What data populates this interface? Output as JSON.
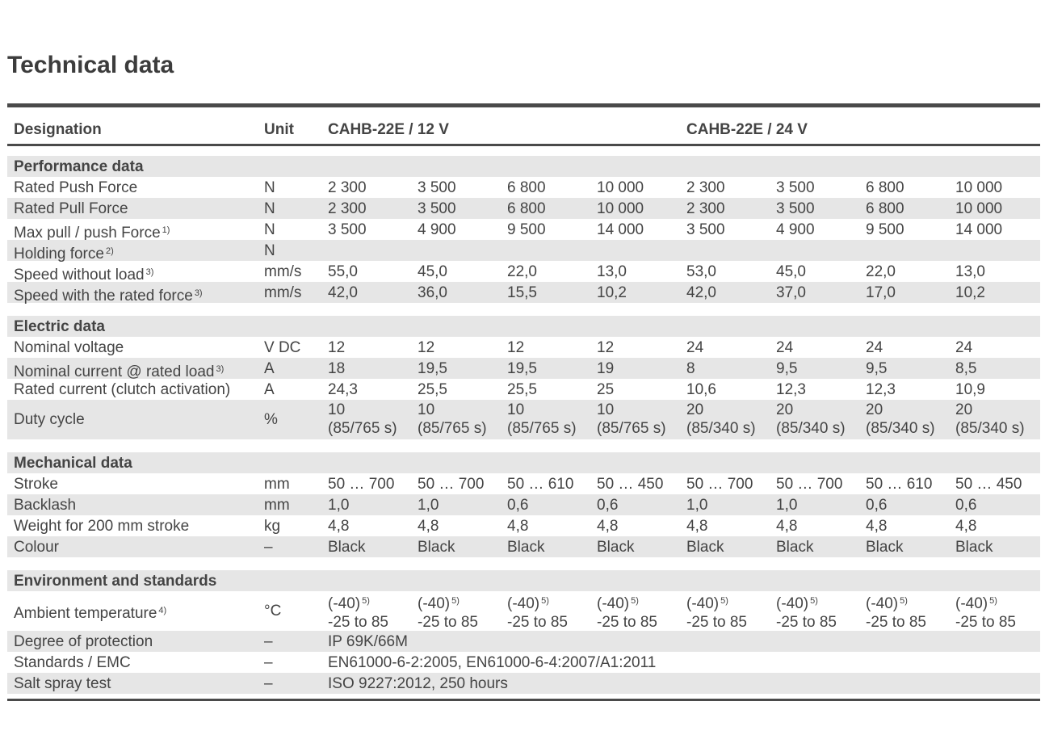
{
  "title": "Technical data",
  "header": {
    "designation": "Designation",
    "unit": "Unit",
    "group_12v": "CAHB-22E / 12 V",
    "group_24v": "CAHB-22E / 24 V"
  },
  "sections": [
    {
      "name": "Performance data",
      "rows": [
        {
          "label": "Rated Push Force",
          "unit": "N",
          "values": [
            "2 300",
            "3 500",
            "6 800",
            "10 000",
            "2 300",
            "3 500",
            "6 800",
            "10 000"
          ]
        },
        {
          "label": "Rated Pull Force",
          "unit": "N",
          "values": [
            "2 300",
            "3 500",
            "6 800",
            "10 000",
            "2 300",
            "3 500",
            "6 800",
            "10 000"
          ]
        },
        {
          "label": "Max pull / push Force",
          "note": "1)",
          "unit": "N",
          "values": [
            "3 500",
            "4 900",
            "9 500",
            "14 000",
            "3 500",
            "4 900",
            "9 500",
            "14 000"
          ]
        },
        {
          "label": "Holding force",
          "note": "2)",
          "unit": "N",
          "values": []
        },
        {
          "label": "Speed without load",
          "note": "3)",
          "unit": "mm/s",
          "values": [
            "55,0",
            "45,0",
            "22,0",
            "13,0",
            "53,0",
            "45,0",
            "22,0",
            "13,0"
          ]
        },
        {
          "label": "Speed with the rated force",
          "note": "3)",
          "unit": "mm/s",
          "values": [
            "42,0",
            "36,0",
            "15,5",
            "10,2",
            "42,0",
            "37,0",
            "17,0",
            "10,2"
          ]
        }
      ]
    },
    {
      "name": "Electric data",
      "rows": [
        {
          "label": "Nominal voltage",
          "unit": "V DC",
          "values": [
            "12",
            "12",
            "12",
            "12",
            "24",
            "24",
            "24",
            "24"
          ]
        },
        {
          "label": "Nominal current @ rated load",
          "note": "3)",
          "unit": "A",
          "values": [
            "18",
            "19,5",
            "19,5",
            "19",
            "8",
            "9,5",
            "9,5",
            "8,5"
          ]
        },
        {
          "label": "Rated current (clutch activation)",
          "unit": "A",
          "values": [
            "24,3",
            "25,5",
            "25,5",
            "25",
            "10,6",
            "12,3",
            "12,3",
            "10,9"
          ]
        },
        {
          "label": "Duty cycle",
          "unit": "%",
          "tall": true,
          "values": [
            "10",
            "10",
            "10",
            "10",
            "20",
            "20",
            "20",
            "20"
          ],
          "values2": [
            "(85/765 s)",
            "(85/765 s)",
            "(85/765 s)",
            "(85/765 s)",
            "(85/340 s)",
            "(85/340 s)",
            "(85/340 s)",
            "(85/340 s)"
          ]
        }
      ]
    },
    {
      "name": "Mechanical data",
      "rows": [
        {
          "label": "Stroke",
          "unit": "mm",
          "values": [
            "50 … 700",
            "50 … 700",
            "50 … 610",
            "50 … 450",
            "50 … 700",
            "50 … 700",
            "50 … 610",
            "50 … 450"
          ]
        },
        {
          "label": "Backlash",
          "unit": "mm",
          "values": [
            "1,0",
            "1,0",
            "0,6",
            "0,6",
            "1,0",
            "1,0",
            "0,6",
            "0,6"
          ]
        },
        {
          "label": "Weight for 200 mm stroke",
          "unit": "kg",
          "values": [
            "4,8",
            "4,8",
            "4,8",
            "4,8",
            "4,8",
            "4,8",
            "4,8",
            "4,8"
          ]
        },
        {
          "label": "Colour",
          "unit": "–",
          "values": [
            "Black",
            "Black",
            "Black",
            "Black",
            "Black",
            "Black",
            "Black",
            "Black"
          ]
        }
      ]
    },
    {
      "name": "Environment and standards",
      "rows": [
        {
          "label": "Ambient temperature",
          "note": "4)",
          "unit": "°C",
          "tall": true,
          "values": [
            "(-40)",
            "(-40)",
            "(-40)",
            "(-40)",
            "(-40)",
            "(-40)",
            "(-40)",
            "(-40)"
          ],
          "value_note": "5)",
          "values2": [
            "-25 to 85",
            "-25 to 85",
            "-25 to 85",
            "-25 to 85",
            "-25 to 85",
            "-25 to 85",
            "-25 to 85",
            "-25 to 85"
          ]
        },
        {
          "label": "Degree of protection",
          "unit": "–",
          "span": "IP 69K/66M"
        },
        {
          "label": "Standards / EMC",
          "unit": "–",
          "span": "EN61000-6-2:2005, EN61000-6-4:2007/A1:2011"
        },
        {
          "label": "Salt spray test",
          "unit": "–",
          "span": "ISO 9227:2012, 250 hours"
        }
      ]
    }
  ]
}
